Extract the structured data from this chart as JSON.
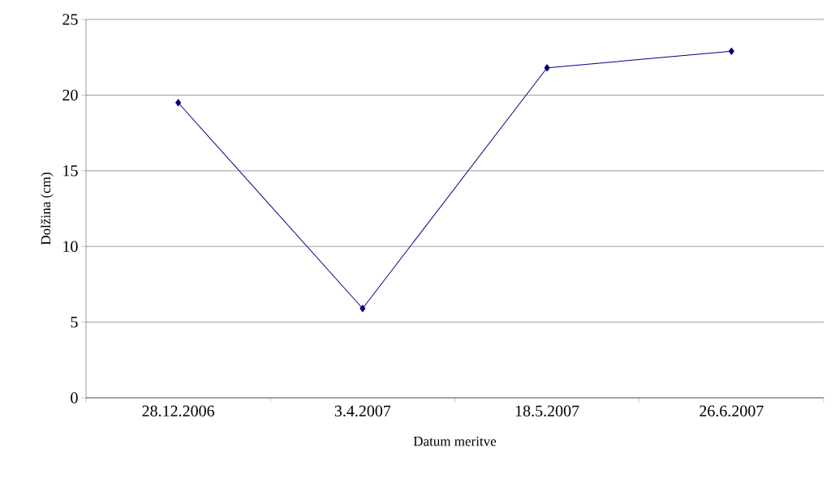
{
  "chart_data": {
    "type": "line",
    "xlabel": "Datum meritve",
    "ylabel": "Dolžina (cm)",
    "categories": [
      "28.12.2006",
      "3.4.2007",
      "18.5.2007",
      "26.6.2007"
    ],
    "series": [
      {
        "color": "#000080",
        "values": [
          19.5,
          5.9,
          21.8,
          22.9
        ]
      }
    ],
    "ylim": [
      0,
      25
    ],
    "yticks": [
      0,
      5,
      10,
      15,
      20,
      25
    ],
    "grid": "y",
    "marker": "diamond",
    "line_style": "solid"
  }
}
